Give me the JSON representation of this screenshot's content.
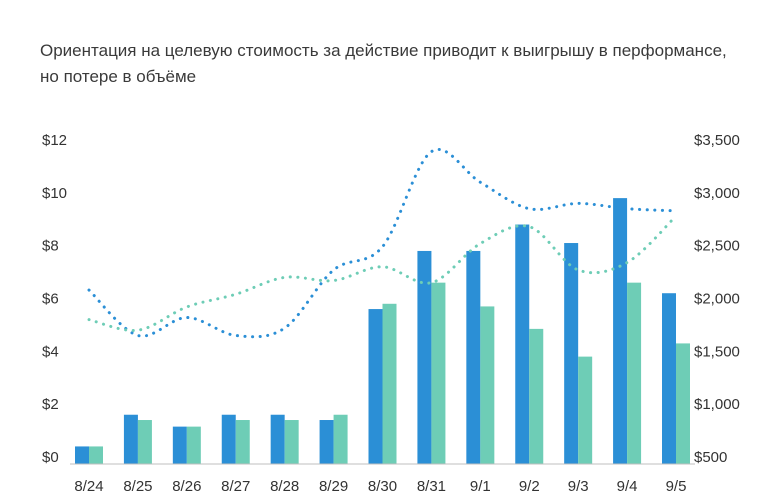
{
  "chart_data": {
    "type": "bar",
    "title": "Ориентация на целевую стоимость за действие приводит к выигрышу в перформансе,",
    "subtitle": "но потере в объёме",
    "categories": [
      "8/24",
      "8/25",
      "8/26",
      "8/27",
      "8/28",
      "8/29",
      "8/30",
      "8/31",
      "9/1",
      "9/2",
      "9/3",
      "9/4",
      "9/5"
    ],
    "series": [
      {
        "type": "bar",
        "axis": "left",
        "color": "#2b8fd6",
        "values": [
          0.4,
          1.6,
          1.15,
          1.6,
          1.6,
          1.4,
          5.6,
          7.8,
          7.8,
          8.8,
          8.1,
          9.8,
          6.2
        ]
      },
      {
        "type": "bar",
        "axis": "left",
        "color": "#6ecdb6",
        "values": [
          0.4,
          1.4,
          1.15,
          1.4,
          1.4,
          1.6,
          5.8,
          6.6,
          5.7,
          4.85,
          3.8,
          6.6,
          4.3
        ]
      },
      {
        "type": "line",
        "style": "dotted",
        "axis": "right",
        "color": "#2b8fd6",
        "values": [
          2080,
          1650,
          1820,
          1650,
          1720,
          2270,
          2490,
          3390,
          3100,
          2850,
          2900,
          2850,
          2830
        ]
      },
      {
        "type": "line",
        "style": "dotted",
        "axis": "right",
        "color": "#6ecdb6",
        "values": [
          1800,
          1700,
          1920,
          2040,
          2200,
          2170,
          2300,
          2150,
          2520,
          2680,
          2270,
          2340,
          2780
        ]
      }
    ],
    "y_left": {
      "ticks": [
        "$0",
        "$2",
        "$4",
        "$6",
        "$8",
        "$10",
        "$12"
      ],
      "min": 0,
      "max": 12
    },
    "y_right": {
      "ticks": [
        "$500",
        "$1,000",
        "$1,500",
        "$2,000",
        "$2,500",
        "$3,000",
        "$3,500"
      ],
      "min": 500,
      "max": 3500
    },
    "grid": false,
    "legend": "none"
  }
}
